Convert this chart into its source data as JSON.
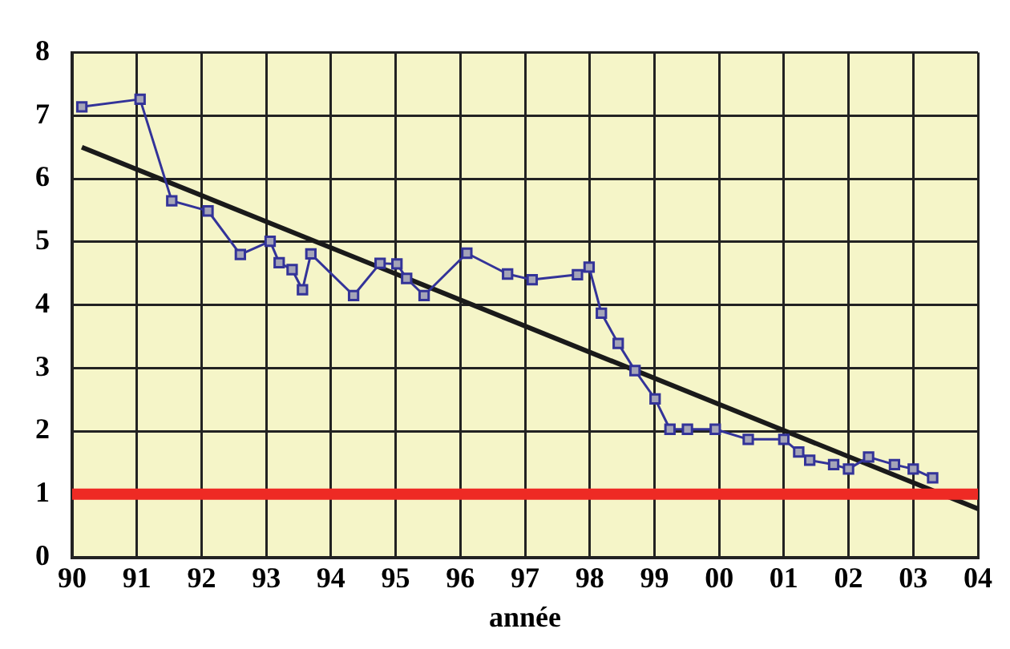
{
  "chart_data": {
    "type": "line",
    "xlabel": "année",
    "xlim": [
      1990,
      2004
    ],
    "ylim": [
      0,
      8
    ],
    "xticks": [
      {
        "value": 1990,
        "label": "90"
      },
      {
        "value": 1991,
        "label": "91"
      },
      {
        "value": 1992,
        "label": "92"
      },
      {
        "value": 1993,
        "label": "93"
      },
      {
        "value": 1994,
        "label": "94"
      },
      {
        "value": 1995,
        "label": "95"
      },
      {
        "value": 1996,
        "label": "96"
      },
      {
        "value": 1997,
        "label": "97"
      },
      {
        "value": 1998,
        "label": "98"
      },
      {
        "value": 1999,
        "label": "99"
      },
      {
        "value": 2000,
        "label": "00"
      },
      {
        "value": 2001,
        "label": "01"
      },
      {
        "value": 2002,
        "label": "02"
      },
      {
        "value": 2003,
        "label": "03"
      },
      {
        "value": 2004,
        "label": "04"
      }
    ],
    "yticks": [
      0,
      1,
      2,
      3,
      4,
      5,
      6,
      7,
      8
    ],
    "grid": true,
    "legend": false,
    "marker": "square",
    "line_style": "solid",
    "series": [
      {
        "color": "#333399",
        "x": [
          1990.15,
          1991.05,
          1991.54,
          1992.1,
          1992.6,
          1993.06,
          1993.2,
          1993.4,
          1993.56,
          1993.69,
          1994.35,
          1994.76,
          1995.02,
          1995.17,
          1995.44,
          1996.1,
          1996.73,
          1997.11,
          1997.81,
          1997.99,
          1998.18,
          1998.44,
          1998.7,
          1999.01,
          1999.24,
          1999.51,
          1999.94,
          2000.45,
          2001.0,
          2001.23,
          2001.4,
          2001.77,
          2002.0,
          2002.31,
          2002.71,
          2003.0,
          2003.3
        ],
        "values": [
          7.14,
          7.26,
          5.65,
          5.49,
          4.8,
          5.01,
          4.67,
          4.56,
          4.24,
          4.81,
          4.15,
          4.66,
          4.65,
          4.42,
          4.15,
          4.82,
          4.49,
          4.4,
          4.48,
          4.6,
          3.87,
          3.39,
          2.96,
          2.51,
          2.03,
          2.03,
          2.03,
          1.87,
          1.87,
          1.67,
          1.54,
          1.47,
          1.4,
          1.59,
          1.47,
          1.4,
          1.26
        ]
      },
      {
        "type": "line",
        "color": "#1a1a1a",
        "marker": "none",
        "x": [
          1990.15,
          2004
        ],
        "values": [
          6.5,
          0.77
        ]
      }
    ],
    "ref_lines": [
      {
        "axis": "y",
        "value": 1,
        "color": "#ee2a24"
      }
    ]
  }
}
